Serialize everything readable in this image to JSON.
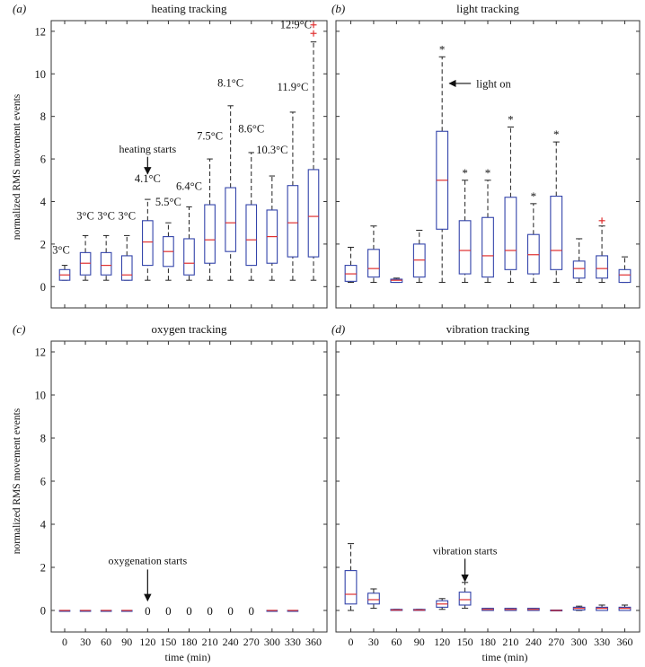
{
  "figure": {
    "ylabel": "normalized RMS movement events",
    "xlabel": "time (min)",
    "yticks": [
      0,
      2,
      4,
      6,
      8,
      10,
      12
    ],
    "xticks": [
      "0",
      "30",
      "60",
      "90",
      "120",
      "150",
      "180",
      "210",
      "240",
      "270",
      "300",
      "330",
      "360"
    ],
    "colors": {
      "box": "#3344aa",
      "median": "#e03030",
      "outlier": "#e03030"
    }
  },
  "chart_data": [
    {
      "type": "box",
      "panel": "(a)",
      "title": "heating tracking",
      "ylim": [
        -1,
        12.5
      ],
      "categories": [
        "0",
        "30",
        "60",
        "90",
        "120",
        "150",
        "180",
        "210",
        "240",
        "270",
        "300",
        "330",
        "360"
      ],
      "boxes": [
        {
          "min": 0.3,
          "q1": 0.3,
          "median": 0.55,
          "q3": 0.8,
          "max": 1.0
        },
        {
          "min": 0.3,
          "q1": 0.55,
          "median": 1.1,
          "q3": 1.6,
          "max": 2.4
        },
        {
          "min": 0.3,
          "q1": 0.55,
          "median": 1.0,
          "q3": 1.6,
          "max": 2.4
        },
        {
          "min": 0.3,
          "q1": 0.3,
          "median": 0.55,
          "q3": 1.45,
          "max": 2.4
        },
        {
          "min": 0.3,
          "q1": 1.0,
          "median": 2.1,
          "q3": 3.1,
          "max": 4.1
        },
        {
          "min": 0.3,
          "q1": 0.95,
          "median": 1.65,
          "q3": 2.35,
          "max": 3.0
        },
        {
          "min": 0.3,
          "q1": 0.55,
          "median": 1.1,
          "q3": 2.25,
          "max": 3.75
        },
        {
          "min": 0.3,
          "q1": 1.1,
          "median": 2.2,
          "q3": 3.85,
          "max": 6.0
        },
        {
          "min": 0.3,
          "q1": 1.65,
          "median": 3.0,
          "q3": 4.65,
          "max": 8.5
        },
        {
          "min": 0.3,
          "q1": 1.0,
          "median": 2.2,
          "q3": 3.85,
          "max": 6.3
        },
        {
          "min": 0.3,
          "q1": 1.1,
          "median": 2.35,
          "q3": 3.6,
          "max": 5.2
        },
        {
          "min": 0.3,
          "q1": 1.4,
          "median": 3.0,
          "q3": 4.75,
          "max": 8.2
        },
        {
          "min": 0.3,
          "q1": 1.4,
          "median": 3.3,
          "q3": 5.5,
          "max": 11.5,
          "outliers": [
            11.9,
            12.3
          ]
        }
      ],
      "labels": [
        "3°C",
        "3°C",
        "3°C",
        "3°C",
        "4.1°C",
        "5.5°C",
        "6.4°C",
        "7.5°C",
        "8.1°C",
        "8.6°C",
        "10.3°C",
        "11.9°C",
        "12.9°C"
      ],
      "annotation": "heating starts"
    },
    {
      "type": "box",
      "panel": "(b)",
      "title": "light tracking",
      "ylim": [
        -1,
        12.5
      ],
      "categories": [
        "0",
        "30",
        "60",
        "90",
        "120",
        "150",
        "180",
        "210",
        "240",
        "270",
        "300",
        "330",
        "360"
      ],
      "boxes": [
        {
          "min": 0.2,
          "q1": 0.25,
          "median": 0.6,
          "q3": 1.0,
          "max": 1.85
        },
        {
          "min": 0.2,
          "q1": 0.45,
          "median": 0.85,
          "q3": 1.75,
          "max": 2.85
        },
        {
          "min": 0.2,
          "q1": 0.2,
          "median": 0.3,
          "q3": 0.35,
          "max": 0.4
        },
        {
          "min": 0.2,
          "q1": 0.45,
          "median": 1.25,
          "q3": 2.0,
          "max": 2.65
        },
        {
          "min": 0.2,
          "q1": 2.7,
          "median": 5.0,
          "q3": 7.3,
          "max": 10.8,
          "star": true
        },
        {
          "min": 0.2,
          "q1": 0.6,
          "median": 1.7,
          "q3": 3.1,
          "max": 5.0,
          "star": true
        },
        {
          "min": 0.2,
          "q1": 0.45,
          "median": 1.45,
          "q3": 3.25,
          "max": 5.0,
          "star": true
        },
        {
          "min": 0.2,
          "q1": 0.8,
          "median": 1.7,
          "q3": 4.2,
          "max": 7.5,
          "star": true
        },
        {
          "min": 0.2,
          "q1": 0.6,
          "median": 1.5,
          "q3": 2.45,
          "max": 3.9,
          "star": true
        },
        {
          "min": 0.2,
          "q1": 0.8,
          "median": 1.7,
          "q3": 4.25,
          "max": 6.8,
          "star": true
        },
        {
          "min": 0.2,
          "q1": 0.4,
          "median": 0.85,
          "q3": 1.2,
          "max": 2.25
        },
        {
          "min": 0.2,
          "q1": 0.4,
          "median": 0.85,
          "q3": 1.45,
          "max": 2.85,
          "outliers": [
            3.1
          ]
        },
        {
          "min": 0.2,
          "q1": 0.2,
          "median": 0.55,
          "q3": 0.8,
          "max": 1.4
        }
      ],
      "annotation": "light on"
    },
    {
      "type": "box",
      "panel": "(c)",
      "title": "oxygen tracking",
      "ylim": [
        -1,
        12.5
      ],
      "categories": [
        "0",
        "30",
        "60",
        "90",
        "120",
        "150",
        "180",
        "210",
        "240",
        "270",
        "300",
        "330",
        "360"
      ],
      "boxes": [
        {
          "min": 0,
          "q1": 0,
          "median": 0,
          "q3": 0,
          "max": 0
        },
        {
          "min": 0,
          "q1": 0,
          "median": 0,
          "q3": 0,
          "max": 0
        },
        {
          "min": 0,
          "q1": 0,
          "median": 0,
          "q3": 0,
          "max": 0
        },
        {
          "min": 0,
          "q1": 0,
          "median": 0,
          "q3": 0,
          "max": 0
        },
        null,
        null,
        null,
        null,
        null,
        null,
        {
          "min": 0,
          "q1": 0,
          "median": 0,
          "q3": 0,
          "max": 0
        },
        {
          "min": 0,
          "q1": 0,
          "median": 0,
          "q3": 0,
          "max": 0
        },
        null
      ],
      "zero_labels": [
        4,
        5,
        6,
        7,
        8,
        9
      ],
      "zero_text": "0",
      "annotation": "oxygenation starts"
    },
    {
      "type": "box",
      "panel": "(d)",
      "title": "vibration tracking",
      "ylim": [
        -1,
        12.5
      ],
      "categories": [
        "0",
        "30",
        "60",
        "90",
        "120",
        "150",
        "180",
        "210",
        "240",
        "270",
        "300",
        "330",
        "360"
      ],
      "boxes": [
        {
          "min": 0.0,
          "q1": 0.3,
          "median": 0.75,
          "q3": 1.85,
          "max": 3.1
        },
        {
          "min": 0.1,
          "q1": 0.3,
          "median": 0.5,
          "q3": 0.8,
          "max": 1.0
        },
        {
          "min": 0.0,
          "q1": 0.0,
          "median": 0.02,
          "q3": 0.05,
          "max": 0.05
        },
        {
          "min": 0.0,
          "q1": 0.0,
          "median": 0.02,
          "q3": 0.05,
          "max": 0.05
        },
        {
          "min": 0.05,
          "q1": 0.15,
          "median": 0.3,
          "q3": 0.45,
          "max": 0.55
        },
        {
          "min": 0.1,
          "q1": 0.25,
          "median": 0.5,
          "q3": 0.85,
          "max": 1.3
        },
        {
          "min": 0.0,
          "q1": 0.0,
          "median": 0.05,
          "q3": 0.1,
          "max": 0.1
        },
        {
          "min": 0.0,
          "q1": 0.0,
          "median": 0.05,
          "q3": 0.1,
          "max": 0.1
        },
        {
          "min": 0.0,
          "q1": 0.0,
          "median": 0.05,
          "q3": 0.1,
          "max": 0.1
        },
        {
          "min": 0.0,
          "q1": 0.0,
          "median": 0.0,
          "q3": 0.02,
          "max": 0.02
        },
        {
          "min": 0.0,
          "q1": 0.02,
          "median": 0.1,
          "q3": 0.15,
          "max": 0.2
        },
        {
          "min": 0.0,
          "q1": 0.0,
          "median": 0.1,
          "q3": 0.15,
          "max": 0.25
        },
        {
          "min": 0.0,
          "q1": 0.0,
          "median": 0.1,
          "q3": 0.15,
          "max": 0.25
        }
      ],
      "annotation": "vibration starts"
    }
  ]
}
